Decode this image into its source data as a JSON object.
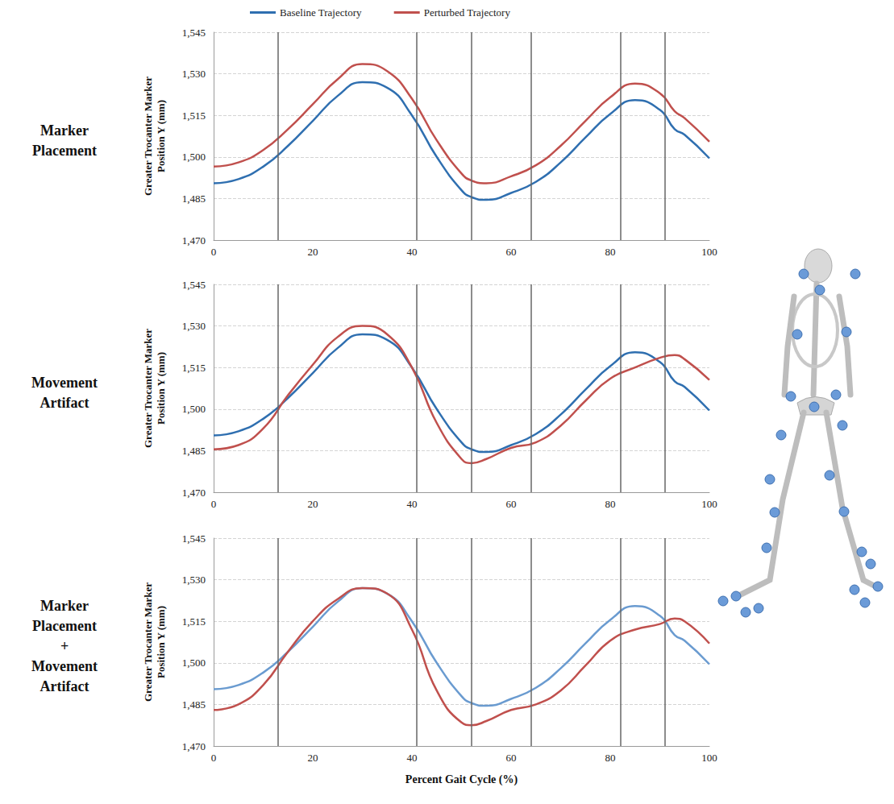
{
  "chart_data": [
    {
      "type": "line",
      "title": "Marker Placement",
      "ylabel": "Greater Trocanter Marker Position Y (mm)",
      "legend": "top",
      "x": [
        0,
        5,
        10,
        15,
        20,
        25,
        30,
        35,
        40,
        45,
        50,
        52,
        55,
        60,
        65,
        70,
        75,
        80,
        85,
        90,
        93,
        95,
        100
      ],
      "series": [
        {
          "name": "Baseline Trajectory",
          "color": "#2f6fb0",
          "values": [
            1490.5,
            1492,
            1496.5,
            1504,
            1513,
            1522,
            1527,
            1525,
            1515,
            1500,
            1488,
            1485.5,
            1484.5,
            1487,
            1491,
            1498,
            1507,
            1515.5,
            1520.5,
            1517,
            1510,
            1508,
            1499.5
          ]
        },
        {
          "name": "Perturbed Trajectory",
          "color": "#c0504d",
          "values": [
            1496.5,
            1498,
            1502.5,
            1510,
            1519,
            1528,
            1533.5,
            1531,
            1521,
            1506,
            1494,
            1491.5,
            1490.5,
            1493,
            1497,
            1504,
            1513,
            1521.5,
            1526.5,
            1523,
            1516.5,
            1514,
            1505.5
          ]
        }
      ],
      "events": [
        13,
        41,
        52,
        64,
        82,
        91
      ],
      "xlim": [
        0,
        100
      ],
      "xticks": [
        0,
        20,
        40,
        60,
        80,
        100
      ],
      "ylim": [
        1470,
        1545
      ],
      "yticks": [
        1470,
        1485,
        1500,
        1515,
        1530,
        1545
      ],
      "grid": true
    },
    {
      "type": "line",
      "title": "Movement Artifact",
      "ylabel": "Greater Trocanter Marker Position Y (mm)",
      "x": [
        0,
        5,
        10,
        15,
        20,
        25,
        30,
        35,
        40,
        45,
        50,
        52,
        55,
        60,
        65,
        70,
        75,
        80,
        85,
        90,
        93,
        95,
        100
      ],
      "series": [
        {
          "name": "Baseline Trajectory",
          "color": "#2f6fb0",
          "values": [
            1490.5,
            1492,
            1496.5,
            1504,
            1513,
            1522,
            1527,
            1525,
            1515,
            1500,
            1488,
            1485.5,
            1484.5,
            1487,
            1491,
            1498,
            1507,
            1515.5,
            1520.5,
            1517,
            1510,
            1508,
            1499.5
          ]
        },
        {
          "name": "Perturbed Trajectory",
          "color": "#c0504d",
          "values": [
            1485.5,
            1487,
            1493,
            1505,
            1516,
            1526,
            1530,
            1527,
            1515,
            1495,
            1482,
            1480.5,
            1482,
            1486,
            1488,
            1494,
            1503,
            1511,
            1515,
            1518.5,
            1519.5,
            1518,
            1510.5
          ]
        }
      ],
      "events": [
        13,
        41,
        52,
        64,
        82,
        91
      ],
      "xlim": [
        0,
        100
      ],
      "xticks": [
        0,
        20,
        40,
        60,
        80,
        100
      ],
      "ylim": [
        1470,
        1545
      ],
      "yticks": [
        1470,
        1485,
        1500,
        1515,
        1530,
        1545
      ],
      "grid": true
    },
    {
      "type": "line",
      "title": "Marker Placement + Movement Artifact",
      "ylabel": "Greater Trocanter Marker Position Y (mm)",
      "xlabel": "Percent Gait Cycle (%)",
      "x": [
        0,
        5,
        10,
        15,
        20,
        25,
        30,
        35,
        40,
        45,
        50,
        52,
        55,
        60,
        65,
        70,
        75,
        80,
        85,
        90,
        93,
        95,
        100
      ],
      "series": [
        {
          "name": "Baseline Trajectory",
          "color": "#6a9bd0",
          "values": [
            1490.5,
            1492,
            1496.5,
            1504,
            1513,
            1522,
            1527,
            1525,
            1515,
            1500,
            1488,
            1485.5,
            1484.5,
            1487,
            1491,
            1498,
            1507,
            1515.5,
            1520.5,
            1517,
            1510,
            1508,
            1499.5
          ]
        },
        {
          "name": "Perturbed Trajectory",
          "color": "#c0504d",
          "values": [
            1483,
            1485,
            1492,
            1504,
            1515,
            1523,
            1527,
            1525,
            1512,
            1490,
            1478.5,
            1477.5,
            1479,
            1483,
            1485,
            1490,
            1499,
            1508,
            1512,
            1514,
            1516,
            1515,
            1507
          ]
        }
      ],
      "events": [
        13,
        41,
        52,
        64,
        82,
        91
      ],
      "xlim": [
        0,
        100
      ],
      "xticks": [
        0,
        20,
        40,
        60,
        80,
        100
      ],
      "ylim": [
        1470,
        1545
      ],
      "yticks": [
        1470,
        1485,
        1500,
        1515,
        1530,
        1545
      ],
      "grid": true
    }
  ]
}
